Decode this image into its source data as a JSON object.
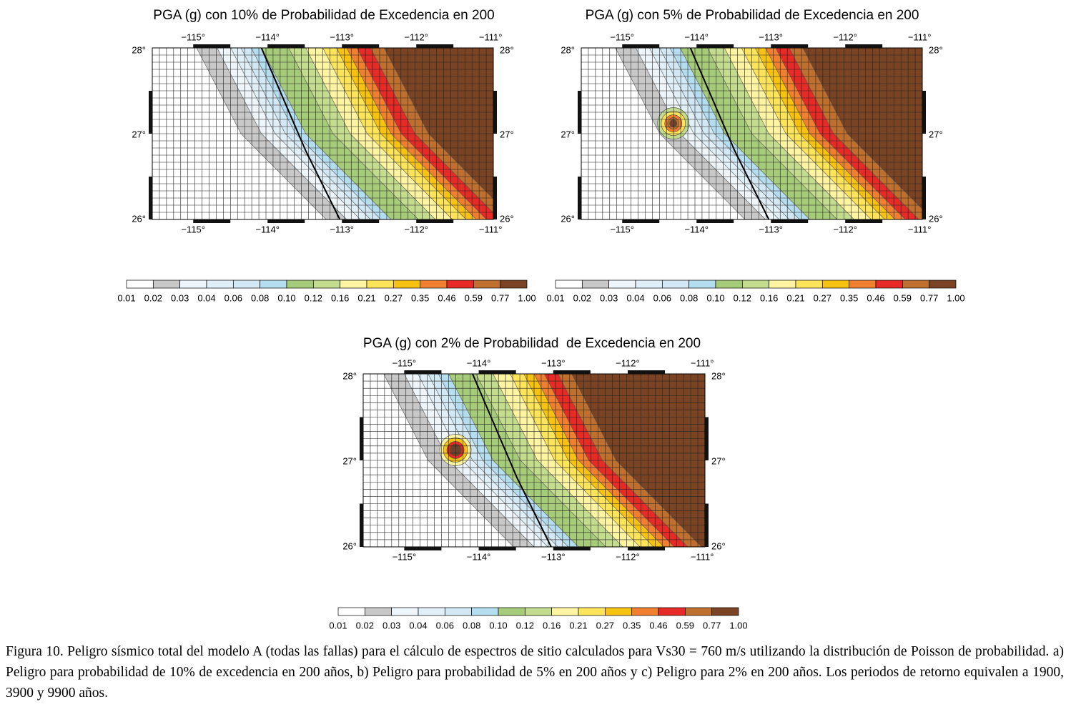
{
  "panels": [
    {
      "title": "PGA (g) con 10% de Probabilidad de Excedencia en 200",
      "lon_labels": [
        "−115°",
        "−114°",
        "−113°",
        "−112°",
        "−111°"
      ],
      "lat_labels": [
        "28°",
        "27°",
        "26°"
      ]
    },
    {
      "title": "PGA (g) con 5% de Probabilidad de Excedencia en 200",
      "lon_labels": [
        "−115°",
        "−114°",
        "−113°",
        "−112°",
        "−111°"
      ],
      "lat_labels": [
        "28°",
        "27°",
        "26°"
      ]
    },
    {
      "title": "PGA (g) con 2% de Probabilidad  de Excedencia en 200",
      "lon_labels": [
        "−115°",
        "−114°",
        "−113°",
        "−112°",
        "−111°"
      ],
      "lat_labels": [
        "28°",
        "27°",
        "26°"
      ]
    }
  ],
  "colorbar": {
    "labels": [
      "0.01",
      "0.02",
      "0.03",
      "0.04",
      "0.06",
      "0.08",
      "0.10",
      "0.12",
      "0.16",
      "0.21",
      "0.27",
      "0.35",
      "0.46",
      "0.59",
      "0.77",
      "1.00"
    ],
    "colors": [
      "#ffffff",
      "#c8c8c8",
      "#eef6fb",
      "#e0eff8",
      "#d2e8f4",
      "#b4ddef",
      "#a6cc7a",
      "#c4dc8e",
      "#fff4a2",
      "#fde45a",
      "#f8c213",
      "#f08030",
      "#e62a26",
      "#c0702e",
      "#7a4424"
    ]
  },
  "caption": "Figura 10. Peligro sísmico total del modelo A (todas las fallas) para el cálculo de espectros de sitio calculados para Vs30 = 760 m/s utilizando la distribución de Poisson de probabilidad. a) Peligro para probabilidad de 10% de excedencia en 200 años, b) Peligro para probabilidad de 5% en 200 años y c) Peligro para 2% en 200 años. Los periodos de retorno equivalen a 1900, 3900 y 9900 años."
}
